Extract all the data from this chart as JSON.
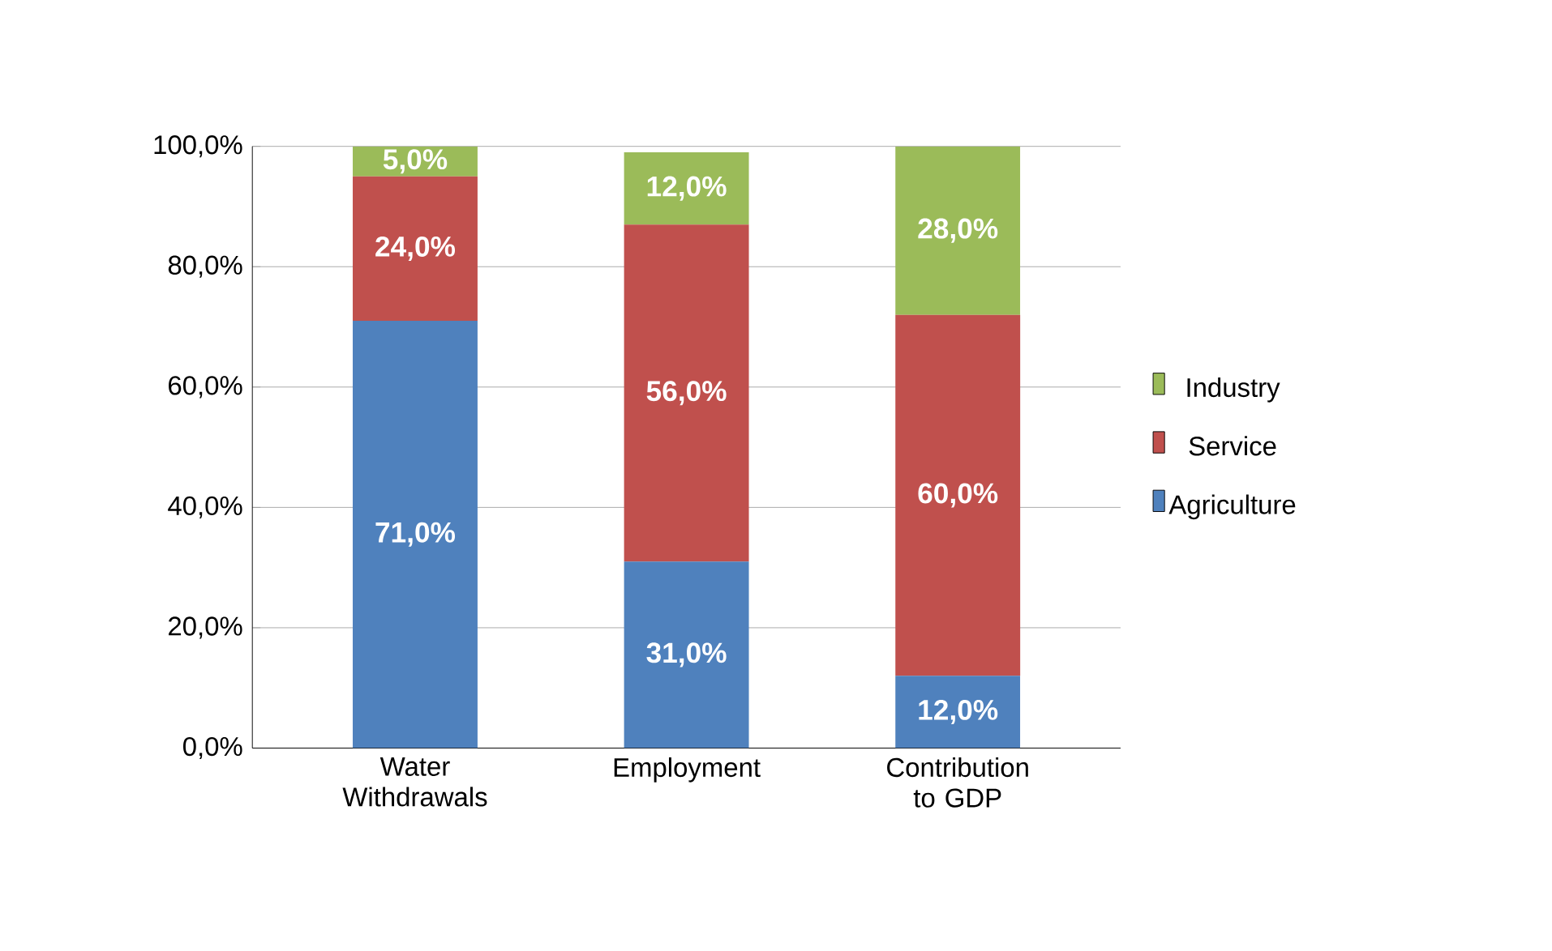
{
  "chart_data": {
    "type": "bar",
    "stacked": true,
    "categories": [
      "Water Withdrawals",
      "Employment",
      "Contribution to GDP"
    ],
    "series": [
      {
        "name": "Agriculture",
        "color": "#4f81bd",
        "values": [
          71,
          31,
          12
        ],
        "value_labels": [
          "71,0%",
          "31,0%",
          "12,0%"
        ]
      },
      {
        "name": "Service",
        "color": "#c0504d",
        "values": [
          24,
          56,
          60
        ],
        "value_labels": [
          "24,0%",
          "56,0%",
          "60,0%"
        ]
      },
      {
        "name": "Industry",
        "color": "#9bbb59",
        "values": [
          5,
          12,
          28
        ],
        "value_labels": [
          "5,0%",
          "12,0%",
          "28,0%"
        ]
      }
    ],
    "ylim": [
      0,
      100
    ],
    "yticks": [
      {
        "value": 0,
        "label": "0,0%"
      },
      {
        "value": 20,
        "label": "20,0%"
      },
      {
        "value": 40,
        "label": "40,0%"
      },
      {
        "value": 60,
        "label": "60,0%"
      },
      {
        "value": 80,
        "label": "80,0%"
      },
      {
        "value": 100,
        "label": "100,0%"
      }
    ],
    "grid": "y",
    "legend": "right"
  }
}
